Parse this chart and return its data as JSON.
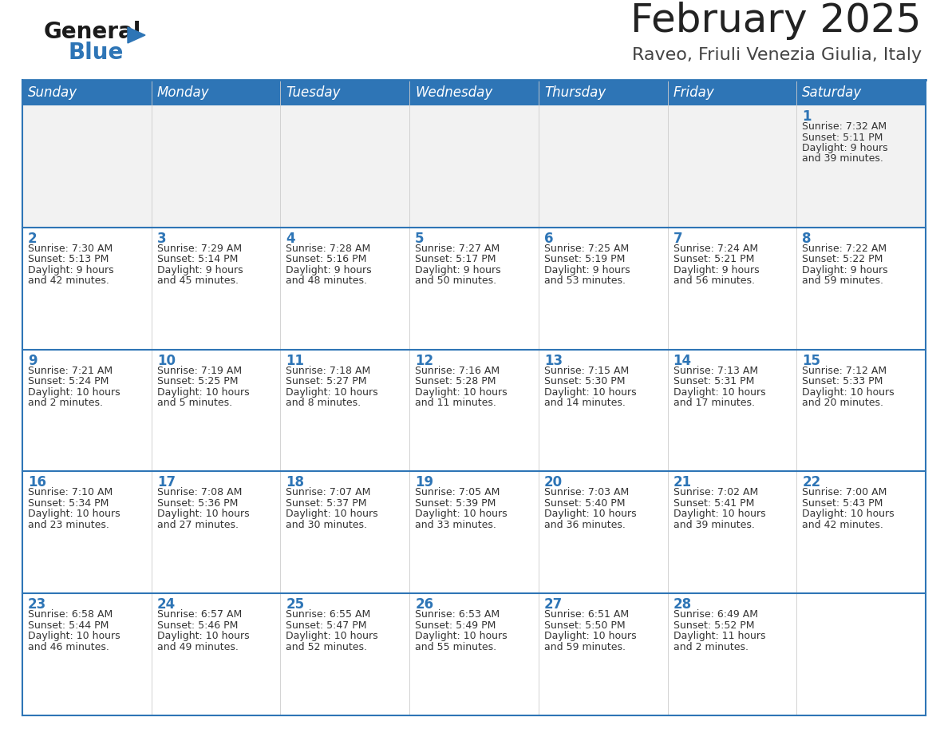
{
  "title": "February 2025",
  "subtitle": "Raveo, Friuli Venezia Giulia, Italy",
  "days_of_week": [
    "Sunday",
    "Monday",
    "Tuesday",
    "Wednesday",
    "Thursday",
    "Friday",
    "Saturday"
  ],
  "header_bg": "#2e75b6",
  "header_text": "#ffffff",
  "cell_bg_light": "#f2f2f2",
  "cell_bg_white": "#ffffff",
  "separator_color": "#2e75b6",
  "day_number_color": "#2e75b6",
  "text_color": "#333333",
  "calendar_data": [
    [
      null,
      null,
      null,
      null,
      null,
      null,
      {
        "day": "1",
        "sunrise": "7:32 AM",
        "sunset": "5:11 PM",
        "daylight_hours": "9",
        "daylight_mins": "39"
      }
    ],
    [
      {
        "day": "2",
        "sunrise": "7:30 AM",
        "sunset": "5:13 PM",
        "daylight_hours": "9",
        "daylight_mins": "42"
      },
      {
        "day": "3",
        "sunrise": "7:29 AM",
        "sunset": "5:14 PM",
        "daylight_hours": "9",
        "daylight_mins": "45"
      },
      {
        "day": "4",
        "sunrise": "7:28 AM",
        "sunset": "5:16 PM",
        "daylight_hours": "9",
        "daylight_mins": "48"
      },
      {
        "day": "5",
        "sunrise": "7:27 AM",
        "sunset": "5:17 PM",
        "daylight_hours": "9",
        "daylight_mins": "50"
      },
      {
        "day": "6",
        "sunrise": "7:25 AM",
        "sunset": "5:19 PM",
        "daylight_hours": "9",
        "daylight_mins": "53"
      },
      {
        "day": "7",
        "sunrise": "7:24 AM",
        "sunset": "5:21 PM",
        "daylight_hours": "9",
        "daylight_mins": "56"
      },
      {
        "day": "8",
        "sunrise": "7:22 AM",
        "sunset": "5:22 PM",
        "daylight_hours": "9",
        "daylight_mins": "59"
      }
    ],
    [
      {
        "day": "9",
        "sunrise": "7:21 AM",
        "sunset": "5:24 PM",
        "daylight_hours": "10",
        "daylight_mins": "2"
      },
      {
        "day": "10",
        "sunrise": "7:19 AM",
        "sunset": "5:25 PM",
        "daylight_hours": "10",
        "daylight_mins": "5"
      },
      {
        "day": "11",
        "sunrise": "7:18 AM",
        "sunset": "5:27 PM",
        "daylight_hours": "10",
        "daylight_mins": "8"
      },
      {
        "day": "12",
        "sunrise": "7:16 AM",
        "sunset": "5:28 PM",
        "daylight_hours": "10",
        "daylight_mins": "11"
      },
      {
        "day": "13",
        "sunrise": "7:15 AM",
        "sunset": "5:30 PM",
        "daylight_hours": "10",
        "daylight_mins": "14"
      },
      {
        "day": "14",
        "sunrise": "7:13 AM",
        "sunset": "5:31 PM",
        "daylight_hours": "10",
        "daylight_mins": "17"
      },
      {
        "day": "15",
        "sunrise": "7:12 AM",
        "sunset": "5:33 PM",
        "daylight_hours": "10",
        "daylight_mins": "20"
      }
    ],
    [
      {
        "day": "16",
        "sunrise": "7:10 AM",
        "sunset": "5:34 PM",
        "daylight_hours": "10",
        "daylight_mins": "23"
      },
      {
        "day": "17",
        "sunrise": "7:08 AM",
        "sunset": "5:36 PM",
        "daylight_hours": "10",
        "daylight_mins": "27"
      },
      {
        "day": "18",
        "sunrise": "7:07 AM",
        "sunset": "5:37 PM",
        "daylight_hours": "10",
        "daylight_mins": "30"
      },
      {
        "day": "19",
        "sunrise": "7:05 AM",
        "sunset": "5:39 PM",
        "daylight_hours": "10",
        "daylight_mins": "33"
      },
      {
        "day": "20",
        "sunrise": "7:03 AM",
        "sunset": "5:40 PM",
        "daylight_hours": "10",
        "daylight_mins": "36"
      },
      {
        "day": "21",
        "sunrise": "7:02 AM",
        "sunset": "5:41 PM",
        "daylight_hours": "10",
        "daylight_mins": "39"
      },
      {
        "day": "22",
        "sunrise": "7:00 AM",
        "sunset": "5:43 PM",
        "daylight_hours": "10",
        "daylight_mins": "42"
      }
    ],
    [
      {
        "day": "23",
        "sunrise": "6:58 AM",
        "sunset": "5:44 PM",
        "daylight_hours": "10",
        "daylight_mins": "46"
      },
      {
        "day": "24",
        "sunrise": "6:57 AM",
        "sunset": "5:46 PM",
        "daylight_hours": "10",
        "daylight_mins": "49"
      },
      {
        "day": "25",
        "sunrise": "6:55 AM",
        "sunset": "5:47 PM",
        "daylight_hours": "10",
        "daylight_mins": "52"
      },
      {
        "day": "26",
        "sunrise": "6:53 AM",
        "sunset": "5:49 PM",
        "daylight_hours": "10",
        "daylight_mins": "55"
      },
      {
        "day": "27",
        "sunrise": "6:51 AM",
        "sunset": "5:50 PM",
        "daylight_hours": "10",
        "daylight_mins": "59"
      },
      {
        "day": "28",
        "sunrise": "6:49 AM",
        "sunset": "5:52 PM",
        "daylight_hours": "11",
        "daylight_mins": "2"
      },
      null
    ]
  ],
  "logo_general_color": "#1a1a1a",
  "logo_blue_color": "#2e75b6",
  "logo_triangle_color": "#2e75b6",
  "title_fontsize": 36,
  "subtitle_fontsize": 16,
  "header_fontsize": 12,
  "day_num_fontsize": 12,
  "cell_text_fontsize": 9
}
